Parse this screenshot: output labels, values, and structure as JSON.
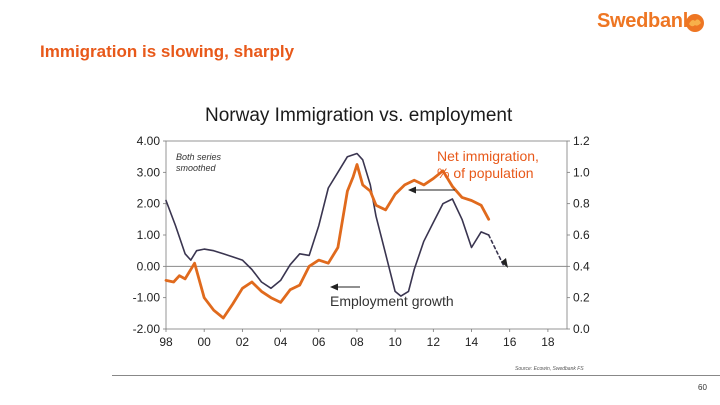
{
  "slide": {
    "title": "Immigration is slowing, sharply",
    "brand": "Swedbank",
    "page_number": "60",
    "source": "Source: Ecowin, Swedbank FS"
  },
  "colors": {
    "accent": "#e8591a",
    "brand": "#ee7623",
    "employment": "#3a3550",
    "immigration": "#e06a1d"
  },
  "chart_data": {
    "type": "line",
    "title": "Norway Immigration vs. employment",
    "x_tick_labels": [
      "98",
      "00",
      "02",
      "04",
      "06",
      "08",
      "10",
      "12",
      "14",
      "16",
      "18"
    ],
    "xlim": [
      1998,
      2019
    ],
    "y_left": {
      "ylim": [
        -2,
        4
      ],
      "tick_labels": [
        "4.00",
        "3.00",
        "2.00",
        "1.00",
        "0.00",
        "-1.00",
        "-2.00"
      ]
    },
    "y_right": {
      "ylim": [
        0,
        1.2
      ],
      "tick_labels": [
        "1.2",
        "1.0",
        "0.8",
        "0.6",
        "0.4",
        "0.2",
        "0.0"
      ]
    },
    "annotations": {
      "both_series_line1": "Both series",
      "both_series_line2": "smoothed",
      "immigration_line1": "Net immigration,",
      "immigration_line2": "% of population",
      "employment": "Employment growth"
    },
    "series": [
      {
        "name": "Employment growth",
        "axis": "left",
        "x": [
          1998.0,
          1998.5,
          1999.0,
          1999.3,
          1999.6,
          2000.0,
          2000.5,
          2001.0,
          2001.5,
          2002.0,
          2002.5,
          2003.0,
          2003.5,
          2004.0,
          2004.5,
          2005.0,
          2005.5,
          2006.0,
          2006.5,
          2007.0,
          2007.5,
          2008.0,
          2008.3,
          2008.7,
          2009.0,
          2009.5,
          2010.0,
          2010.3,
          2010.7,
          2011.0,
          2011.5,
          2012.0,
          2012.5,
          2013.0,
          2013.5,
          2014.0,
          2014.5,
          2014.9
        ],
        "values": [
          2.1,
          1.3,
          0.4,
          0.2,
          0.5,
          0.55,
          0.5,
          0.4,
          0.3,
          0.2,
          -0.1,
          -0.5,
          -0.7,
          -0.45,
          0.05,
          0.4,
          0.35,
          1.3,
          2.5,
          3.0,
          3.5,
          3.6,
          3.4,
          2.6,
          1.6,
          0.4,
          -0.8,
          -0.95,
          -0.8,
          -0.1,
          0.8,
          1.4,
          2.0,
          2.15,
          1.5,
          0.6,
          1.1,
          1.0
        ]
      },
      {
        "name": "Employment growth (projected)",
        "axis": "left",
        "dashed": true,
        "x": [
          2014.9,
          2015.3,
          2015.7
        ],
        "values": [
          1.0,
          0.5,
          0.0
        ]
      },
      {
        "name": "Net immigration, % of population",
        "axis": "right",
        "x": [
          1998.0,
          1998.4,
          1998.7,
          1999.0,
          1999.5,
          2000.0,
          2000.5,
          2001.0,
          2001.5,
          2002.0,
          2002.5,
          2003.0,
          2003.5,
          2004.0,
          2004.5,
          2005.0,
          2005.5,
          2006.0,
          2006.5,
          2007.0,
          2007.5,
          2007.8,
          2008.0,
          2008.3,
          2008.7,
          2009.0,
          2009.5,
          2010.0,
          2010.5,
          2011.0,
          2011.5,
          2012.0,
          2012.5,
          2013.0,
          2013.5,
          2014.0,
          2014.5,
          2014.9
        ],
        "values": [
          0.31,
          0.3,
          0.34,
          0.32,
          0.42,
          0.2,
          0.12,
          0.07,
          0.16,
          0.26,
          0.3,
          0.24,
          0.2,
          0.17,
          0.25,
          0.28,
          0.4,
          0.44,
          0.42,
          0.52,
          0.88,
          0.97,
          1.05,
          0.92,
          0.88,
          0.79,
          0.76,
          0.86,
          0.92,
          0.95,
          0.92,
          0.96,
          1.01,
          0.91,
          0.84,
          0.82,
          0.79,
          0.7
        ]
      }
    ]
  }
}
